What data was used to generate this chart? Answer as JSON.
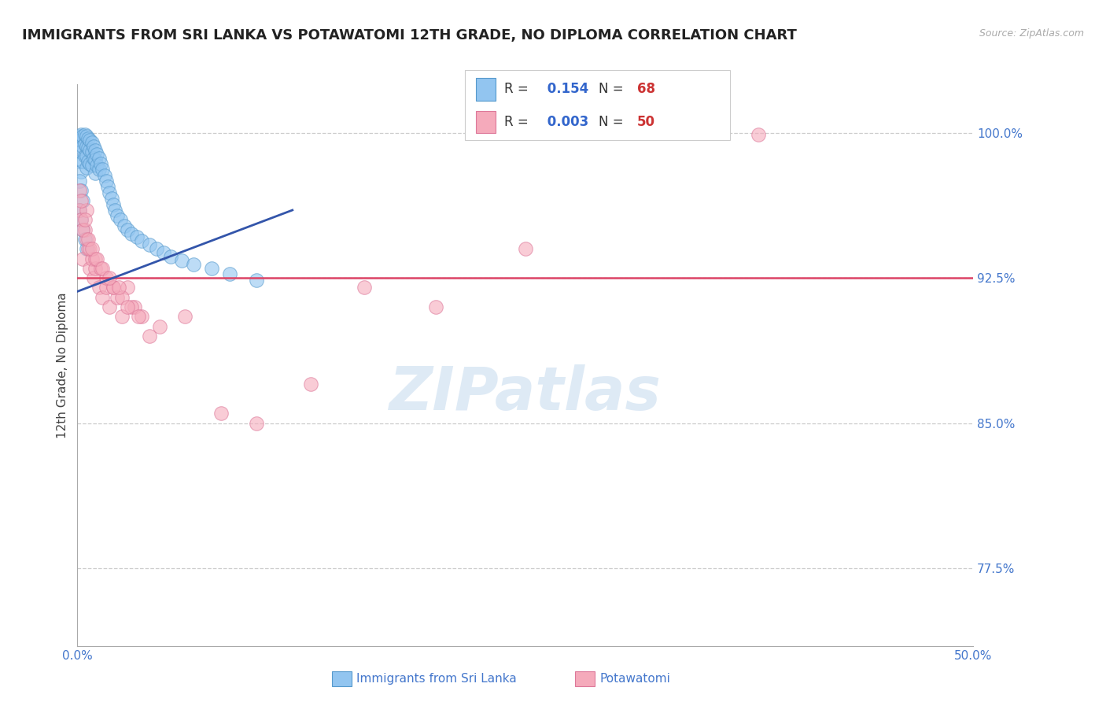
{
  "title": "IMMIGRANTS FROM SRI LANKA VS POTAWATOMI 12TH GRADE, NO DIPLOMA CORRELATION CHART",
  "source_text": "Source: ZipAtlas.com",
  "ylabel": "12th Grade, No Diploma",
  "xlabel_label1": "Immigrants from Sri Lanka",
  "xlabel_label2": "Potawatomi",
  "xmin": 0.0,
  "xmax": 0.5,
  "ymin": 0.735,
  "ymax": 1.025,
  "yticks": [
    0.775,
    0.85,
    0.925,
    1.0
  ],
  "ytick_labels": [
    "77.5%",
    "85.0%",
    "92.5%",
    "100.0%"
  ],
  "xtick_left": 0.0,
  "xtick_right": 0.5,
  "xtick_label_left": "0.0%",
  "xtick_label_right": "50.0%",
  "blue_r": 0.154,
  "blue_n": 68,
  "pink_r": 0.003,
  "pink_n": 50,
  "blue_color": "#92C5F0",
  "pink_color": "#F5AABB",
  "blue_edge_color": "#5599CC",
  "pink_edge_color": "#DD7799",
  "blue_line_color": "#3355AA",
  "pink_line_color": "#DD4466",
  "dashed_line_color": "#CCCCCC",
  "pink_hline_y": 0.925,
  "blue_trend_x0": 0.0,
  "blue_trend_y0": 0.918,
  "blue_trend_x1": 0.12,
  "blue_trend_y1": 0.96,
  "watermark_text": "ZIPatlas",
  "background_color": "#FFFFFF",
  "title_fontsize": 13,
  "axis_label_fontsize": 11,
  "tick_fontsize": 11,
  "blue_scatter_x": [
    0.001,
    0.001,
    0.001,
    0.002,
    0.002,
    0.002,
    0.002,
    0.003,
    0.003,
    0.003,
    0.004,
    0.004,
    0.004,
    0.005,
    0.005,
    0.005,
    0.005,
    0.006,
    0.006,
    0.006,
    0.007,
    0.007,
    0.007,
    0.008,
    0.008,
    0.008,
    0.009,
    0.009,
    0.01,
    0.01,
    0.01,
    0.011,
    0.011,
    0.012,
    0.012,
    0.013,
    0.014,
    0.015,
    0.016,
    0.017,
    0.018,
    0.019,
    0.02,
    0.021,
    0.022,
    0.024,
    0.026,
    0.028,
    0.03,
    0.033,
    0.036,
    0.04,
    0.044,
    0.048,
    0.052,
    0.058,
    0.065,
    0.075,
    0.085,
    0.1,
    0.001,
    0.002,
    0.003,
    0.001,
    0.002,
    0.003,
    0.004,
    0.005
  ],
  "blue_scatter_y": [
    0.998,
    0.993,
    0.985,
    0.999,
    0.996,
    0.99,
    0.98,
    0.998,
    0.993,
    0.985,
    0.999,
    0.994,
    0.988,
    0.998,
    0.993,
    0.988,
    0.982,
    0.997,
    0.992,
    0.985,
    0.996,
    0.991,
    0.984,
    0.995,
    0.99,
    0.983,
    0.993,
    0.987,
    0.991,
    0.986,
    0.979,
    0.989,
    0.983,
    0.987,
    0.981,
    0.984,
    0.981,
    0.978,
    0.975,
    0.972,
    0.969,
    0.966,
    0.963,
    0.96,
    0.957,
    0.955,
    0.952,
    0.95,
    0.948,
    0.946,
    0.944,
    0.942,
    0.94,
    0.938,
    0.936,
    0.934,
    0.932,
    0.93,
    0.927,
    0.924,
    0.975,
    0.97,
    0.965,
    0.96,
    0.955,
    0.95,
    0.945,
    0.94
  ],
  "pink_scatter_x": [
    0.001,
    0.002,
    0.003,
    0.004,
    0.005,
    0.006,
    0.007,
    0.008,
    0.009,
    0.01,
    0.012,
    0.014,
    0.016,
    0.018,
    0.02,
    0.022,
    0.025,
    0.028,
    0.032,
    0.036,
    0.001,
    0.003,
    0.005,
    0.007,
    0.01,
    0.013,
    0.016,
    0.02,
    0.025,
    0.03,
    0.002,
    0.004,
    0.006,
    0.008,
    0.011,
    0.014,
    0.018,
    0.023,
    0.028,
    0.034,
    0.04,
    0.046,
    0.06,
    0.08,
    0.1,
    0.13,
    0.16,
    0.2,
    0.25,
    0.38
  ],
  "pink_scatter_y": [
    0.96,
    0.955,
    0.935,
    0.95,
    0.945,
    0.94,
    0.93,
    0.935,
    0.925,
    0.93,
    0.92,
    0.915,
    0.92,
    0.91,
    0.92,
    0.915,
    0.905,
    0.92,
    0.91,
    0.905,
    0.97,
    0.95,
    0.96,
    0.94,
    0.935,
    0.93,
    0.925,
    0.92,
    0.915,
    0.91,
    0.965,
    0.955,
    0.945,
    0.94,
    0.935,
    0.93,
    0.925,
    0.92,
    0.91,
    0.905,
    0.895,
    0.9,
    0.905,
    0.855,
    0.85,
    0.87,
    0.92,
    0.91,
    0.94,
    0.999
  ]
}
